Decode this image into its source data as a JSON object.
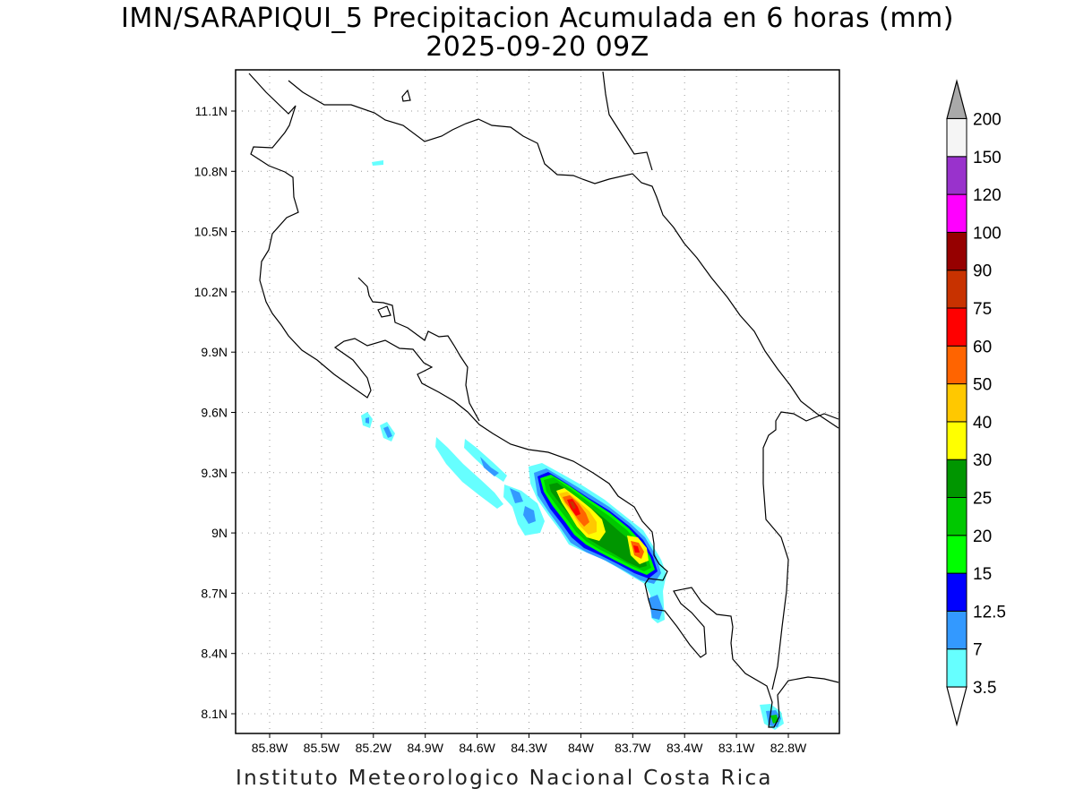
{
  "header": {
    "title": "IMN/SARAPIQUI_5 Precipitacion Acumulada en 6 horas (mm)",
    "valid_time": "2025-09-20 09Z"
  },
  "footer": {
    "credit": "Instituto Meteorologico Nacional Costa Rica"
  },
  "map": {
    "lon_labels": [
      "85.8W",
      "85.5W",
      "85.2W",
      "84.9W",
      "84.6W",
      "84.3W",
      "84W",
      "83.7W",
      "83.4W",
      "83.1W",
      "82.8W"
    ],
    "lat_labels": [
      "11.1N",
      "10.8N",
      "10.5N",
      "10.2N",
      "9.9N",
      "9.6N",
      "9.3N",
      "9N",
      "8.7N",
      "8.4N",
      "8.1N"
    ],
    "grid": "dotted"
  },
  "colorbar": {
    "labels": [
      "3.5",
      "7",
      "12.5",
      "15",
      "20",
      "25",
      "30",
      "40",
      "50",
      "60",
      "75",
      "90",
      "100",
      "120",
      "150",
      "200"
    ],
    "colors": [
      "#66ffff",
      "#3399ff",
      "#0000ff",
      "#00ff00",
      "#00c800",
      "#009600",
      "#ffff00",
      "#ffc800",
      "#ff6400",
      "#ff0000",
      "#c83200",
      "#960000",
      "#ff00ff",
      "#9932cc",
      "#f5f5f5"
    ],
    "over_color": "#a9a9a9",
    "under_color": "#ffffff"
  }
}
